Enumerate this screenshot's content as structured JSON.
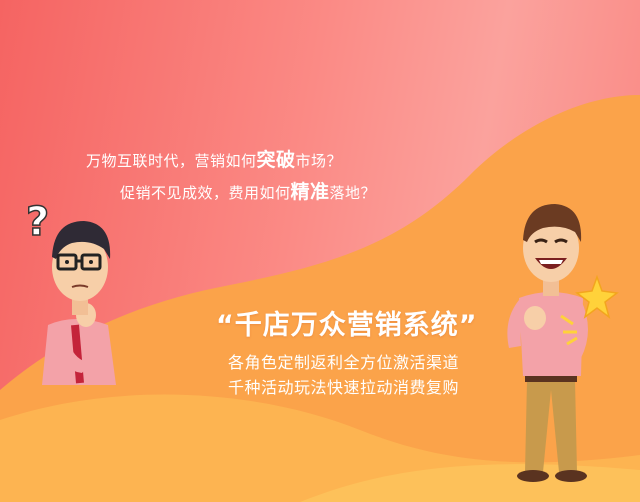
{
  "colors": {
    "bg_left": "#f56462",
    "bg_right": "#fba29d",
    "wave_orange": "#fba34a",
    "wave_light": "#fdc15a",
    "text": "#ffffff"
  },
  "question": {
    "line1_a": "万物互联时代，营销如何",
    "line1_em": "突破",
    "line1_b": "市场？",
    "line2_a": "促销不见成效，费用如何",
    "line2_em": "精准",
    "line2_b": "落地？"
  },
  "slogan": "“千店万众营销系统”",
  "features": {
    "line1": "各角色定制返利全方位激活渠道",
    "line2": "千种活动玩法快速拉动消费复购"
  },
  "characters": {
    "left_mark": "?",
    "left_icon": "thinking-man-icon",
    "right_icon": "happy-man-icon",
    "spark_icon": "star-spark-icon"
  }
}
